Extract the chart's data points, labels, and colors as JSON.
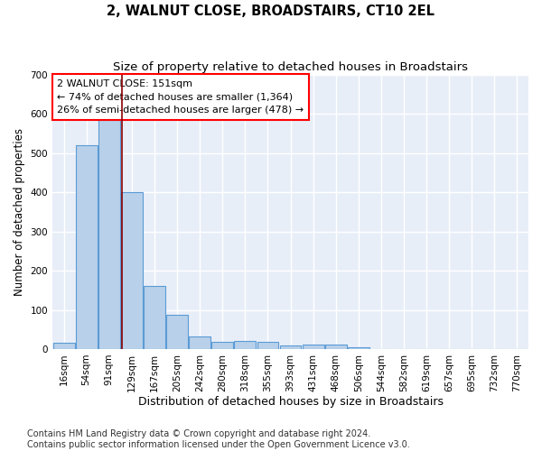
{
  "title1": "2, WALNUT CLOSE, BROADSTAIRS, CT10 2EL",
  "title2": "Size of property relative to detached houses in Broadstairs",
  "xlabel": "Distribution of detached houses by size in Broadstairs",
  "ylabel": "Number of detached properties",
  "bar_color": "#b8d0ea",
  "bar_edge_color": "#5b9bd5",
  "background_color": "#e8eef8",
  "grid_color": "#ffffff",
  "categories": [
    "16sqm",
    "54sqm",
    "91sqm",
    "129sqm",
    "167sqm",
    "205sqm",
    "242sqm",
    "280sqm",
    "318sqm",
    "355sqm",
    "393sqm",
    "431sqm",
    "468sqm",
    "506sqm",
    "544sqm",
    "582sqm",
    "619sqm",
    "657sqm",
    "695sqm",
    "732sqm",
    "770sqm"
  ],
  "values": [
    15,
    520,
    585,
    400,
    162,
    88,
    32,
    18,
    20,
    18,
    10,
    12,
    12,
    5,
    0,
    0,
    0,
    0,
    0,
    0,
    0
  ],
  "annotation_line1": "2 WALNUT CLOSE: 151sqm",
  "annotation_line2": "← 74% of detached houses are smaller (1,364)",
  "annotation_line3": "26% of semi-detached houses are larger (478) →",
  "property_line_x": 2.55,
  "property_line_color": "#8b0000",
  "ylim": [
    0,
    700
  ],
  "yticks": [
    0,
    100,
    200,
    300,
    400,
    500,
    600,
    700
  ],
  "footnote": "Contains HM Land Registry data © Crown copyright and database right 2024.\nContains public sector information licensed under the Open Government Licence v3.0.",
  "title1_fontsize": 10.5,
  "title2_fontsize": 9.5,
  "xlabel_fontsize": 9,
  "ylabel_fontsize": 8.5,
  "annotation_fontsize": 8,
  "tick_fontsize": 7.5,
  "footnote_fontsize": 7
}
